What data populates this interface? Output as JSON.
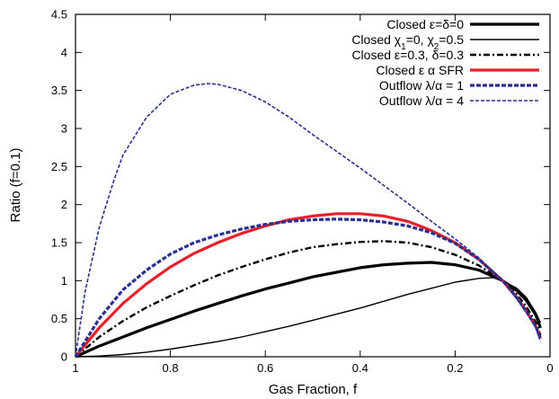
{
  "chart_data": {
    "type": "line",
    "title": "",
    "xlabel": "Gas Fraction, f",
    "ylabel": "Ratio (f=0.1)",
    "xlim": [
      1,
      0
    ],
    "ylim": [
      0,
      4.5
    ],
    "x_ticks": [
      1,
      0.8,
      0.6,
      0.4,
      0.2,
      0
    ],
    "x_tick_labels": [
      "1",
      "0.8",
      "0.6",
      "0.4",
      "0.2",
      "0"
    ],
    "y_ticks": [
      0,
      0.5,
      1,
      1.5,
      2,
      2.5,
      3,
      3.5,
      4,
      4.5
    ],
    "y_tick_labels": [
      "0",
      "0.5",
      "1",
      "1.5",
      "2",
      "2.5",
      "3",
      "3.5",
      "4",
      "4.5"
    ],
    "grid": false,
    "legend_position": "top-right",
    "series": [
      {
        "name": "Closed ε=δ=0",
        "color": "#000000",
        "style": "solid-thick",
        "x": [
          1,
          0.95,
          0.9,
          0.85,
          0.8,
          0.75,
          0.7,
          0.65,
          0.6,
          0.55,
          0.5,
          0.45,
          0.4,
          0.35,
          0.3,
          0.25,
          0.2,
          0.15,
          0.1,
          0.07,
          0.05,
          0.03,
          0.02
        ],
        "y": [
          0,
          0.14,
          0.26,
          0.38,
          0.49,
          0.6,
          0.7,
          0.8,
          0.89,
          0.97,
          1.05,
          1.11,
          1.17,
          1.21,
          1.23,
          1.24,
          1.21,
          1.14,
          1.0,
          0.87,
          0.74,
          0.55,
          0.38
        ]
      },
      {
        "name_parts": [
          "Closed χ",
          "1",
          "=0, χ",
          "2",
          "=0.5"
        ],
        "color": "#000000",
        "style": "solid-thin",
        "x": [
          1,
          0.95,
          0.9,
          0.85,
          0.8,
          0.75,
          0.7,
          0.65,
          0.6,
          0.55,
          0.5,
          0.45,
          0.4,
          0.35,
          0.3,
          0.25,
          0.2,
          0.15,
          0.12,
          0.1,
          0.07,
          0.05,
          0.03,
          0.02
        ],
        "y": [
          0,
          0.01,
          0.03,
          0.06,
          0.1,
          0.15,
          0.2,
          0.26,
          0.33,
          0.4,
          0.48,
          0.56,
          0.64,
          0.73,
          0.82,
          0.9,
          0.98,
          1.03,
          1.04,
          1.0,
          0.9,
          0.78,
          0.58,
          0.45
        ]
      },
      {
        "name": "Closed ε=0.3, δ=0.3",
        "color": "#000000",
        "style": "dash-dot",
        "x": [
          1,
          0.95,
          0.9,
          0.85,
          0.8,
          0.75,
          0.7,
          0.65,
          0.6,
          0.55,
          0.5,
          0.45,
          0.4,
          0.35,
          0.3,
          0.25,
          0.2,
          0.15,
          0.1,
          0.07,
          0.05,
          0.03,
          0.02
        ],
        "y": [
          0,
          0.26,
          0.47,
          0.65,
          0.8,
          0.94,
          1.07,
          1.18,
          1.28,
          1.37,
          1.44,
          1.48,
          1.51,
          1.52,
          1.5,
          1.44,
          1.34,
          1.2,
          1.0,
          0.82,
          0.66,
          0.45,
          0.28
        ]
      },
      {
        "name": "Closed ε α SFR",
        "color": "#e8202a",
        "style": "solid-thick",
        "x": [
          1,
          0.95,
          0.9,
          0.85,
          0.8,
          0.75,
          0.7,
          0.65,
          0.6,
          0.55,
          0.5,
          0.45,
          0.4,
          0.35,
          0.3,
          0.25,
          0.2,
          0.15,
          0.1,
          0.07,
          0.05,
          0.03,
          0.02
        ],
        "y": [
          0,
          0.38,
          0.7,
          0.96,
          1.18,
          1.36,
          1.5,
          1.62,
          1.72,
          1.8,
          1.85,
          1.88,
          1.88,
          1.85,
          1.78,
          1.66,
          1.5,
          1.28,
          1.0,
          0.78,
          0.6,
          0.4,
          0.24
        ]
      },
      {
        "name": "Outflow λ/α = 1",
        "color": "#2b2f8f",
        "style": "dashed-thick",
        "x": [
          1,
          0.95,
          0.9,
          0.85,
          0.8,
          0.75,
          0.7,
          0.65,
          0.6,
          0.55,
          0.5,
          0.45,
          0.4,
          0.35,
          0.3,
          0.25,
          0.2,
          0.15,
          0.1,
          0.07,
          0.05,
          0.03,
          0.02
        ],
        "y": [
          0,
          0.5,
          0.88,
          1.14,
          1.35,
          1.5,
          1.6,
          1.68,
          1.74,
          1.78,
          1.8,
          1.81,
          1.8,
          1.77,
          1.72,
          1.63,
          1.49,
          1.28,
          1.0,
          0.78,
          0.6,
          0.4,
          0.24
        ]
      },
      {
        "name": "Outflow λ/α = 4",
        "color": "#2b2f8f",
        "style": "dashed-thin",
        "x": [
          1,
          0.98,
          0.95,
          0.92,
          0.9,
          0.85,
          0.8,
          0.75,
          0.72,
          0.7,
          0.65,
          0.6,
          0.55,
          0.5,
          0.45,
          0.4,
          0.35,
          0.3,
          0.25,
          0.2,
          0.15,
          0.1,
          0.07,
          0.05,
          0.03,
          0.02
        ],
        "y": [
          0,
          0.85,
          1.7,
          2.3,
          2.65,
          3.15,
          3.45,
          3.57,
          3.59,
          3.58,
          3.5,
          3.35,
          3.15,
          2.92,
          2.7,
          2.48,
          2.25,
          2.02,
          1.78,
          1.55,
          1.3,
          1.0,
          0.76,
          0.58,
          0.38,
          0.2
        ]
      }
    ]
  }
}
